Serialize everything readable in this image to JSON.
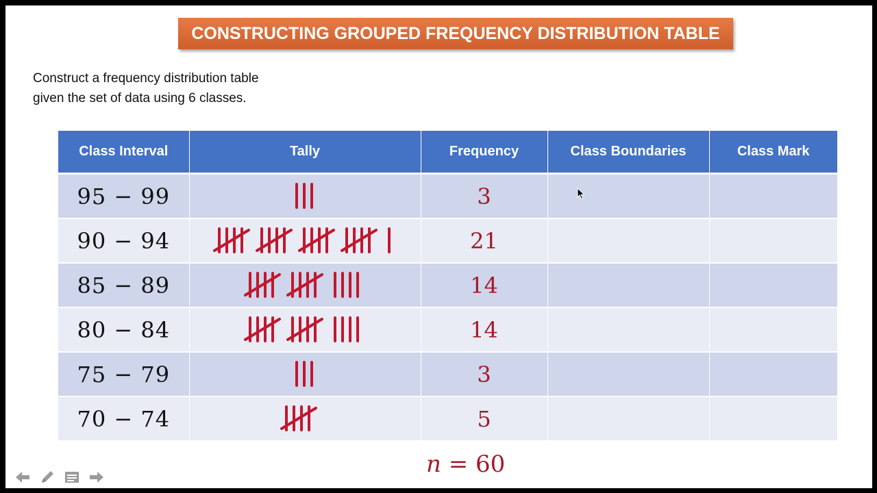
{
  "title": "CONSTRUCTING GROUPED FREQUENCY DISTRIBUTION TABLE",
  "prompt": {
    "line1": "Construct a frequency distribution table",
    "line2": "given the set of data using 6 classes."
  },
  "table": {
    "headers": [
      "Class Interval",
      "Tally",
      "Frequency",
      "Class Boundaries",
      "Class Mark"
    ],
    "rows": [
      {
        "interval": "95 −  99",
        "frequency": "3",
        "tally_count": 3,
        "boundaries": "",
        "mark": ""
      },
      {
        "interval": "90 −  94",
        "frequency": "21",
        "tally_count": 21,
        "boundaries": "",
        "mark": ""
      },
      {
        "interval": "85 −  89",
        "frequency": "14",
        "tally_count": 14,
        "boundaries": "",
        "mark": ""
      },
      {
        "interval": "80 −  84",
        "frequency": "14",
        "tally_count": 14,
        "boundaries": "",
        "mark": ""
      },
      {
        "interval": "75 −  79",
        "frequency": "3",
        "tally_count": 3,
        "boundaries": "",
        "mark": ""
      },
      {
        "interval": "70 −  74",
        "frequency": "5",
        "tally_count": 5,
        "boundaries": "",
        "mark": ""
      }
    ]
  },
  "total": {
    "variable": "n",
    "equals": "=",
    "value": "60"
  },
  "colors": {
    "header": "#4472c4",
    "title_banner": "#d9683a",
    "tally": "#c0182e",
    "frequency": "#a3182a"
  },
  "nav_icons": [
    "back-arrow-icon",
    "pen-icon",
    "menu-icon",
    "forward-arrow-icon"
  ]
}
